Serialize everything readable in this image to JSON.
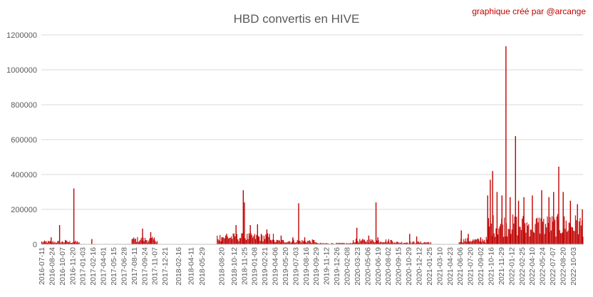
{
  "chart_data": {
    "type": "bar",
    "title": "HBD convertis en HIVE",
    "annotation": "graphique créé par @arcange",
    "xlabel": "",
    "ylabel": "",
    "ylim": [
      0,
      1200000
    ],
    "yticks": [
      0,
      200000,
      400000,
      600000,
      800000,
      1000000,
      1200000
    ],
    "grid": true,
    "legend": "none",
    "bar_color": "#c00000",
    "x_start": "2016-07-11",
    "x_end": "2022-11-15",
    "x_tick_labels": [
      "2016-07-11",
      "2016-08-24",
      "2016-10-07",
      "2016-11-20",
      "2017-01-03",
      "2017-02-16",
      "2017-04-01",
      "2017-05-15",
      "2017-06-28",
      "2017-08-11",
      "2017-09-24",
      "2017-11-07",
      "2017-12-21",
      "2018-02-16",
      "2018-04-11",
      "2018-05-29",
      "2018-08-20",
      "2018-10-12",
      "2018-11-25",
      "2019-01-08",
      "2019-02-21",
      "2019-04-06",
      "2019-05-20",
      "2019-07-03",
      "2019-08-16",
      "2019-09-29",
      "2019-11-12",
      "2019-12-26",
      "2020-02-08",
      "2020-03-23",
      "2020-05-06",
      "2020-06-19",
      "2020-08-02",
      "2020-09-15",
      "2020-10-29",
      "2020-12-12",
      "2021-01-25",
      "2021-03-10",
      "2021-04-23",
      "2021-06-06",
      "2021-07-20",
      "2021-09-02",
      "2021-10-16",
      "2021-11-29",
      "2022-01-12",
      "2022-02-25",
      "2022-04-10",
      "2022-05-24",
      "2022-07-07",
      "2022-08-20",
      "2022-10-03"
    ],
    "series": [
      {
        "values": [
          {
            "x": "2016-08-20",
            "y": 40000
          },
          {
            "x": "2016-09-25",
            "y": 110000
          },
          {
            "x": "2016-10-20",
            "y": 25000
          },
          {
            "x": "2016-11-25",
            "y": 320000
          },
          {
            "x": "2017-02-10",
            "y": 30000
          },
          {
            "x": "2017-09-15",
            "y": 90000
          },
          {
            "x": "2017-10-20",
            "y": 70000
          },
          {
            "x": "2018-08-20",
            "y": 40000
          },
          {
            "x": "2018-09-10",
            "y": 60000
          },
          {
            "x": "2018-10-20",
            "y": 110000
          },
          {
            "x": "2018-11-20",
            "y": 310000
          },
          {
            "x": "2018-11-25",
            "y": 240000
          },
          {
            "x": "2018-12-20",
            "y": 110000
          },
          {
            "x": "2019-01-20",
            "y": 115000
          },
          {
            "x": "2019-03-01",
            "y": 85000
          },
          {
            "x": "2019-05-01",
            "y": 50000
          },
          {
            "x": "2019-06-20",
            "y": 40000
          },
          {
            "x": "2019-07-15",
            "y": 235000
          },
          {
            "x": "2019-08-10",
            "y": 40000
          },
          {
            "x": "2020-03-20",
            "y": 95000
          },
          {
            "x": "2020-05-10",
            "y": 50000
          },
          {
            "x": "2020-06-10",
            "y": 240000
          },
          {
            "x": "2020-06-18",
            "y": 40000
          },
          {
            "x": "2020-11-01",
            "y": 60000
          },
          {
            "x": "2020-12-01",
            "y": 45000
          },
          {
            "x": "2021-06-10",
            "y": 80000
          },
          {
            "x": "2021-07-10",
            "y": 60000
          },
          {
            "x": "2021-09-01",
            "y": 40000
          },
          {
            "x": "2021-10-01",
            "y": 280000
          },
          {
            "x": "2021-10-12",
            "y": 370000
          },
          {
            "x": "2021-10-22",
            "y": 420000
          },
          {
            "x": "2021-11-10",
            "y": 300000
          },
          {
            "x": "2021-12-01",
            "y": 280000
          },
          {
            "x": "2021-12-18",
            "y": 1135000
          },
          {
            "x": "2022-01-05",
            "y": 270000
          },
          {
            "x": "2022-01-28",
            "y": 620000
          },
          {
            "x": "2022-02-10",
            "y": 250000
          },
          {
            "x": "2022-03-05",
            "y": 270000
          },
          {
            "x": "2022-04-10",
            "y": 280000
          },
          {
            "x": "2022-05-20",
            "y": 310000
          },
          {
            "x": "2022-06-20",
            "y": 270000
          },
          {
            "x": "2022-07-10",
            "y": 300000
          },
          {
            "x": "2022-08-01",
            "y": 445000
          },
          {
            "x": "2022-08-20",
            "y": 300000
          },
          {
            "x": "2022-09-20",
            "y": 250000
          },
          {
            "x": "2022-10-20",
            "y": 230000
          },
          {
            "x": "2022-11-10",
            "y": 200000
          }
        ],
        "background_levels": [
          {
            "from": "2016-07-11",
            "to": "2016-12-20",
            "level": 15000
          },
          {
            "from": "2016-12-21",
            "to": "2017-07-31",
            "level": 2000
          },
          {
            "from": "2017-08-01",
            "to": "2017-11-20",
            "level": 30000
          },
          {
            "from": "2017-11-21",
            "to": "2018-07-31",
            "level": 500
          },
          {
            "from": "2018-08-01",
            "to": "2019-03-31",
            "level": 45000
          },
          {
            "from": "2019-04-01",
            "to": "2019-09-30",
            "level": 20000
          },
          {
            "from": "2019-10-01",
            "to": "2020-02-28",
            "level": 6000
          },
          {
            "from": "2020-03-01",
            "to": "2020-08-31",
            "level": 22000
          },
          {
            "from": "2020-09-01",
            "to": "2021-01-31",
            "level": 12000
          },
          {
            "from": "2021-02-01",
            "to": "2021-05-31",
            "level": 1000
          },
          {
            "from": "2021-06-01",
            "to": "2021-08-31",
            "level": 25000
          },
          {
            "from": "2021-09-01",
            "to": "2021-09-30",
            "level": 30000
          },
          {
            "from": "2021-10-01",
            "to": "2022-11-15",
            "level": 120000
          }
        ]
      }
    ]
  }
}
